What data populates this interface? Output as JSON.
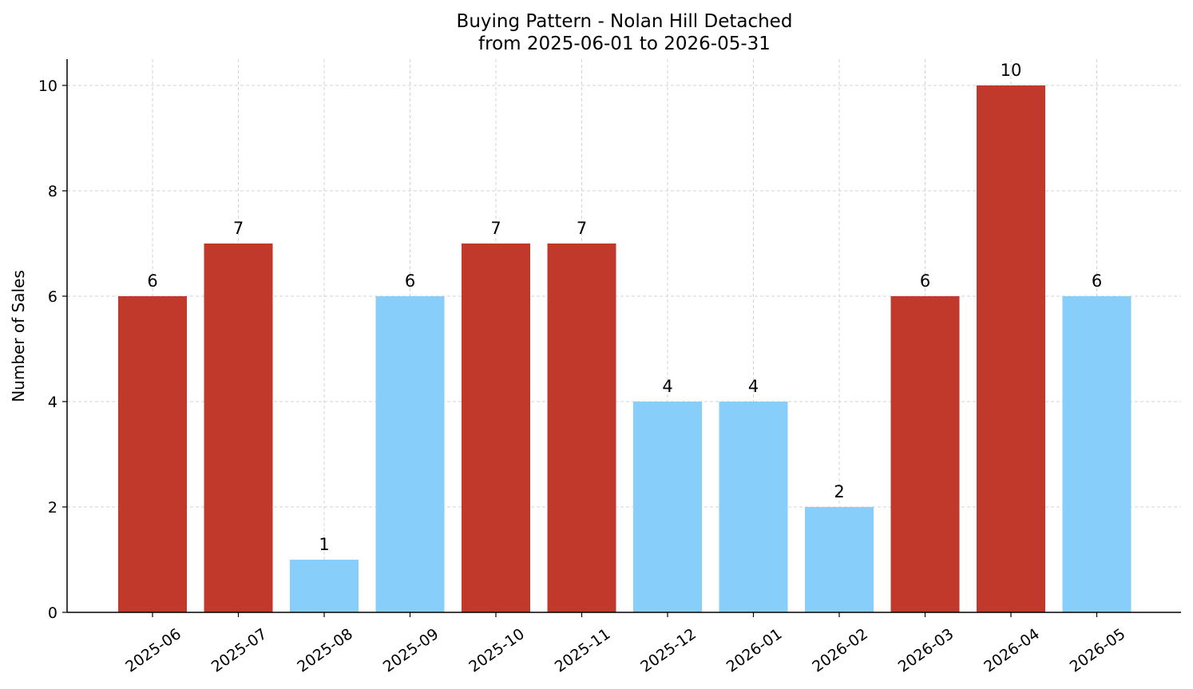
{
  "chart_data": {
    "type": "bar",
    "title": "Buying Pattern - Nolan Hill Detached",
    "subtitle": "from 2025-06-01 to 2026-05-31",
    "xlabel": "",
    "ylabel": "Number of Sales",
    "categories": [
      "2025-06",
      "2025-07",
      "2025-08",
      "2025-09",
      "2025-10",
      "2025-11",
      "2025-12",
      "2026-01",
      "2026-02",
      "2026-03",
      "2026-04",
      "2026-05"
    ],
    "values": [
      6,
      7,
      1,
      6,
      7,
      7,
      4,
      4,
      2,
      6,
      10,
      6
    ],
    "bar_colors": [
      "#c0392b",
      "#c0392b",
      "#87cefa",
      "#87cefa",
      "#c0392b",
      "#c0392b",
      "#87cefa",
      "#87cefa",
      "#87cefa",
      "#c0392b",
      "#c0392b",
      "#87cefa"
    ],
    "ylim": [
      0,
      10.5
    ],
    "yticks": [
      0,
      2,
      4,
      6,
      8,
      10
    ],
    "grid": true,
    "grid_style": "dashed",
    "data_labels": true,
    "legend": "none"
  }
}
